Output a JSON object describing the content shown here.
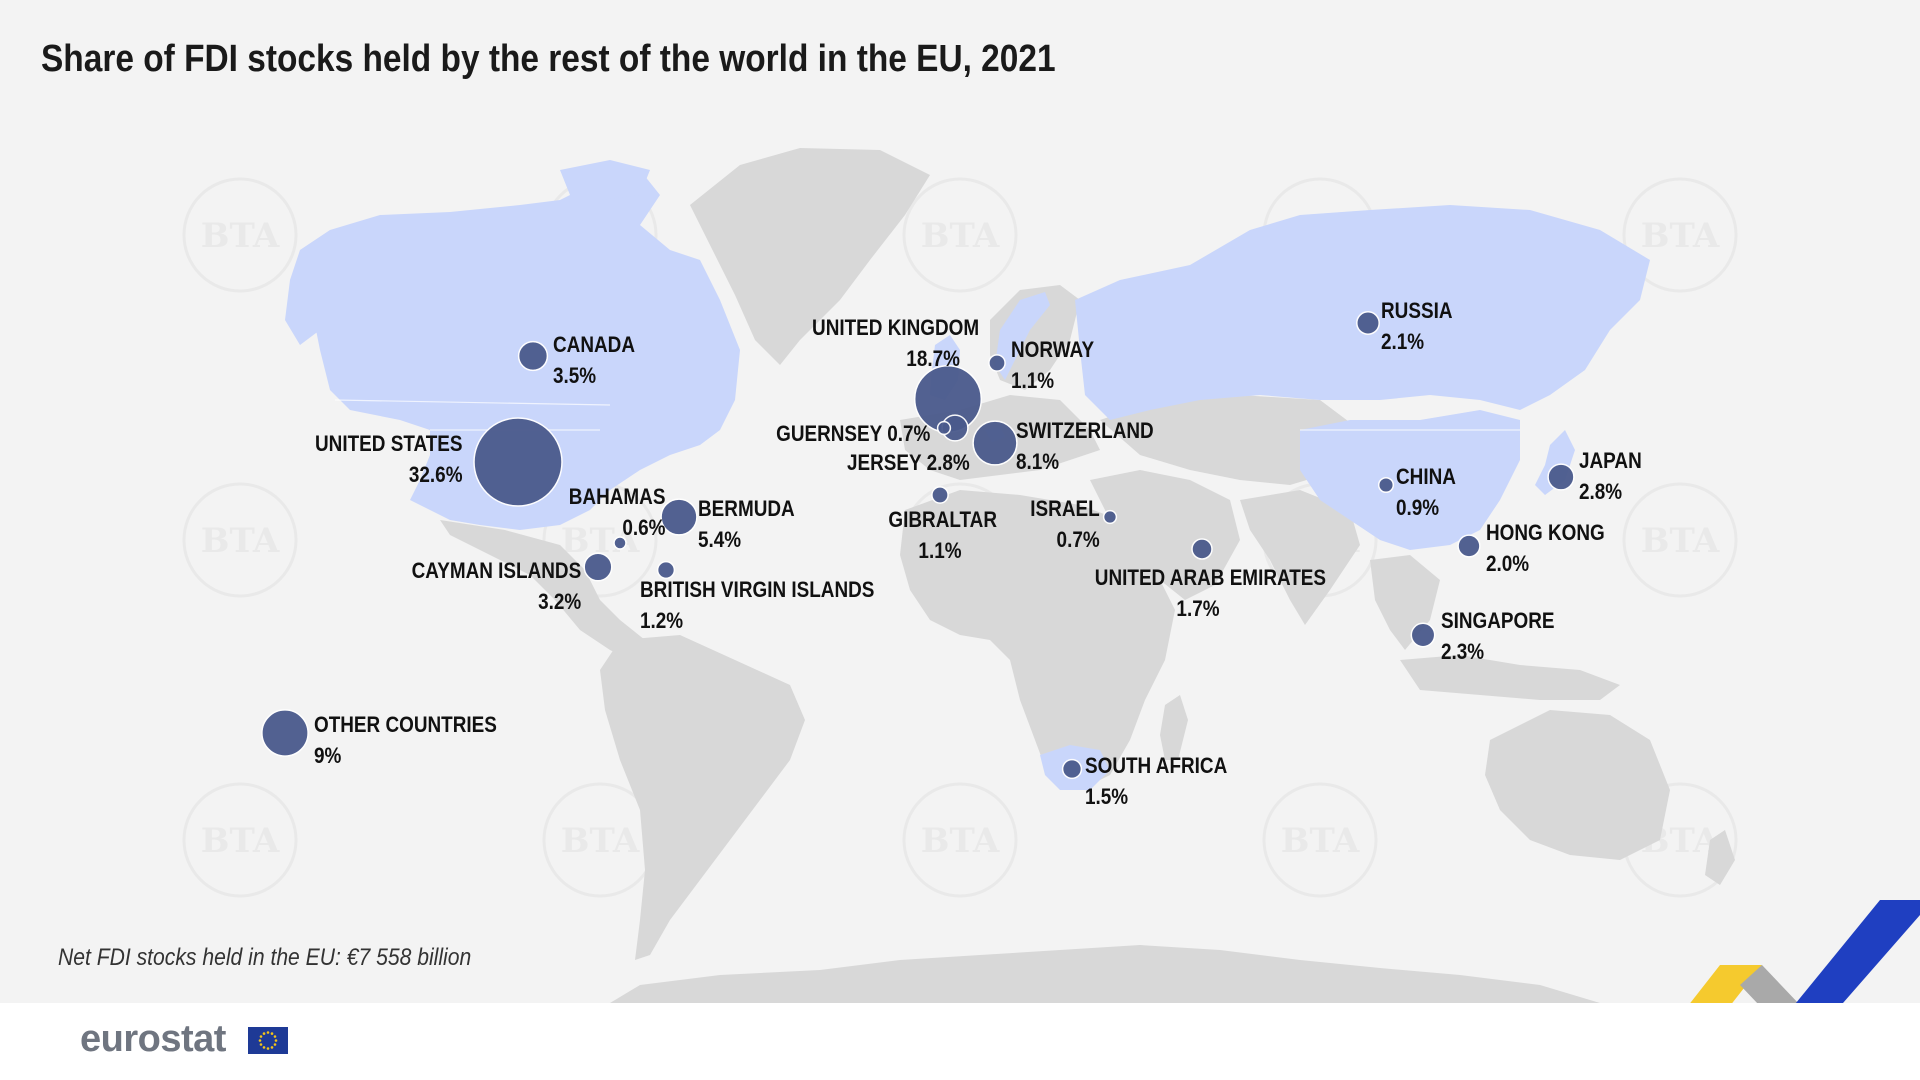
{
  "title": "Share of FDI stocks held by the rest of the world in the EU, 2021",
  "footnote": "Net FDI stocks held in the EU: €7 558 billion",
  "logo": {
    "text": "eurostat",
    "flag_icon": "eu-flag-icon"
  },
  "watermark_text": "BTA",
  "colors": {
    "background": "#f3f3f3",
    "land": "#d8d8d8",
    "highlight_land": "#c9d6fb",
    "bubble": "#4a5a8c",
    "accent_blue": "#1f3fc1",
    "accent_yellow": "#f5c518",
    "accent_grey": "#a9a9a9"
  },
  "map_data": {
    "measure": "share of FDI stocks (%)",
    "countries": [
      {
        "name": "UNITED STATES",
        "value": "32.6%",
        "share": 32.6
      },
      {
        "name": "UNITED KINGDOM",
        "value": "18.7%",
        "share": 18.7
      },
      {
        "name": "OTHER COUNTRIES",
        "value": "9%",
        "share": 9.0
      },
      {
        "name": "SWITZERLAND",
        "value": "8.1%",
        "share": 8.1
      },
      {
        "name": "BERMUDA",
        "value": "5.4%",
        "share": 5.4
      },
      {
        "name": "CANADA",
        "value": "3.5%",
        "share": 3.5
      },
      {
        "name": "CAYMAN ISLANDS",
        "value": "3.2%",
        "share": 3.2
      },
      {
        "name": "JERSEY",
        "value": "2.8%",
        "share": 2.8
      },
      {
        "name": "JAPAN",
        "value": "2.8%",
        "share": 2.8
      },
      {
        "name": "SINGAPORE",
        "value": "2.3%",
        "share": 2.3
      },
      {
        "name": "RUSSIA",
        "value": "2.1%",
        "share": 2.1
      },
      {
        "name": "HONG KONG",
        "value": "2.0%",
        "share": 2.0
      },
      {
        "name": "UNITED ARAB EMIRATES",
        "value": "1.7%",
        "share": 1.7
      },
      {
        "name": "SOUTH AFRICA",
        "value": "1.5%",
        "share": 1.5
      },
      {
        "name": "BRITISH VIRGIN ISLANDS",
        "value": "1.2%",
        "share": 1.2
      },
      {
        "name": "NORWAY",
        "value": "1.1%",
        "share": 1.1
      },
      {
        "name": "GIBRALTAR",
        "value": "1.1%",
        "share": 1.1
      },
      {
        "name": "CHINA",
        "value": "0.9%",
        "share": 0.9
      },
      {
        "name": "GUERNSEY",
        "value": "0.7%",
        "share": 0.7
      },
      {
        "name": "ISRAEL",
        "value": "0.7%",
        "share": 0.7
      },
      {
        "name": "BAHAMAS",
        "value": "0.6%",
        "share": 0.6
      }
    ]
  }
}
